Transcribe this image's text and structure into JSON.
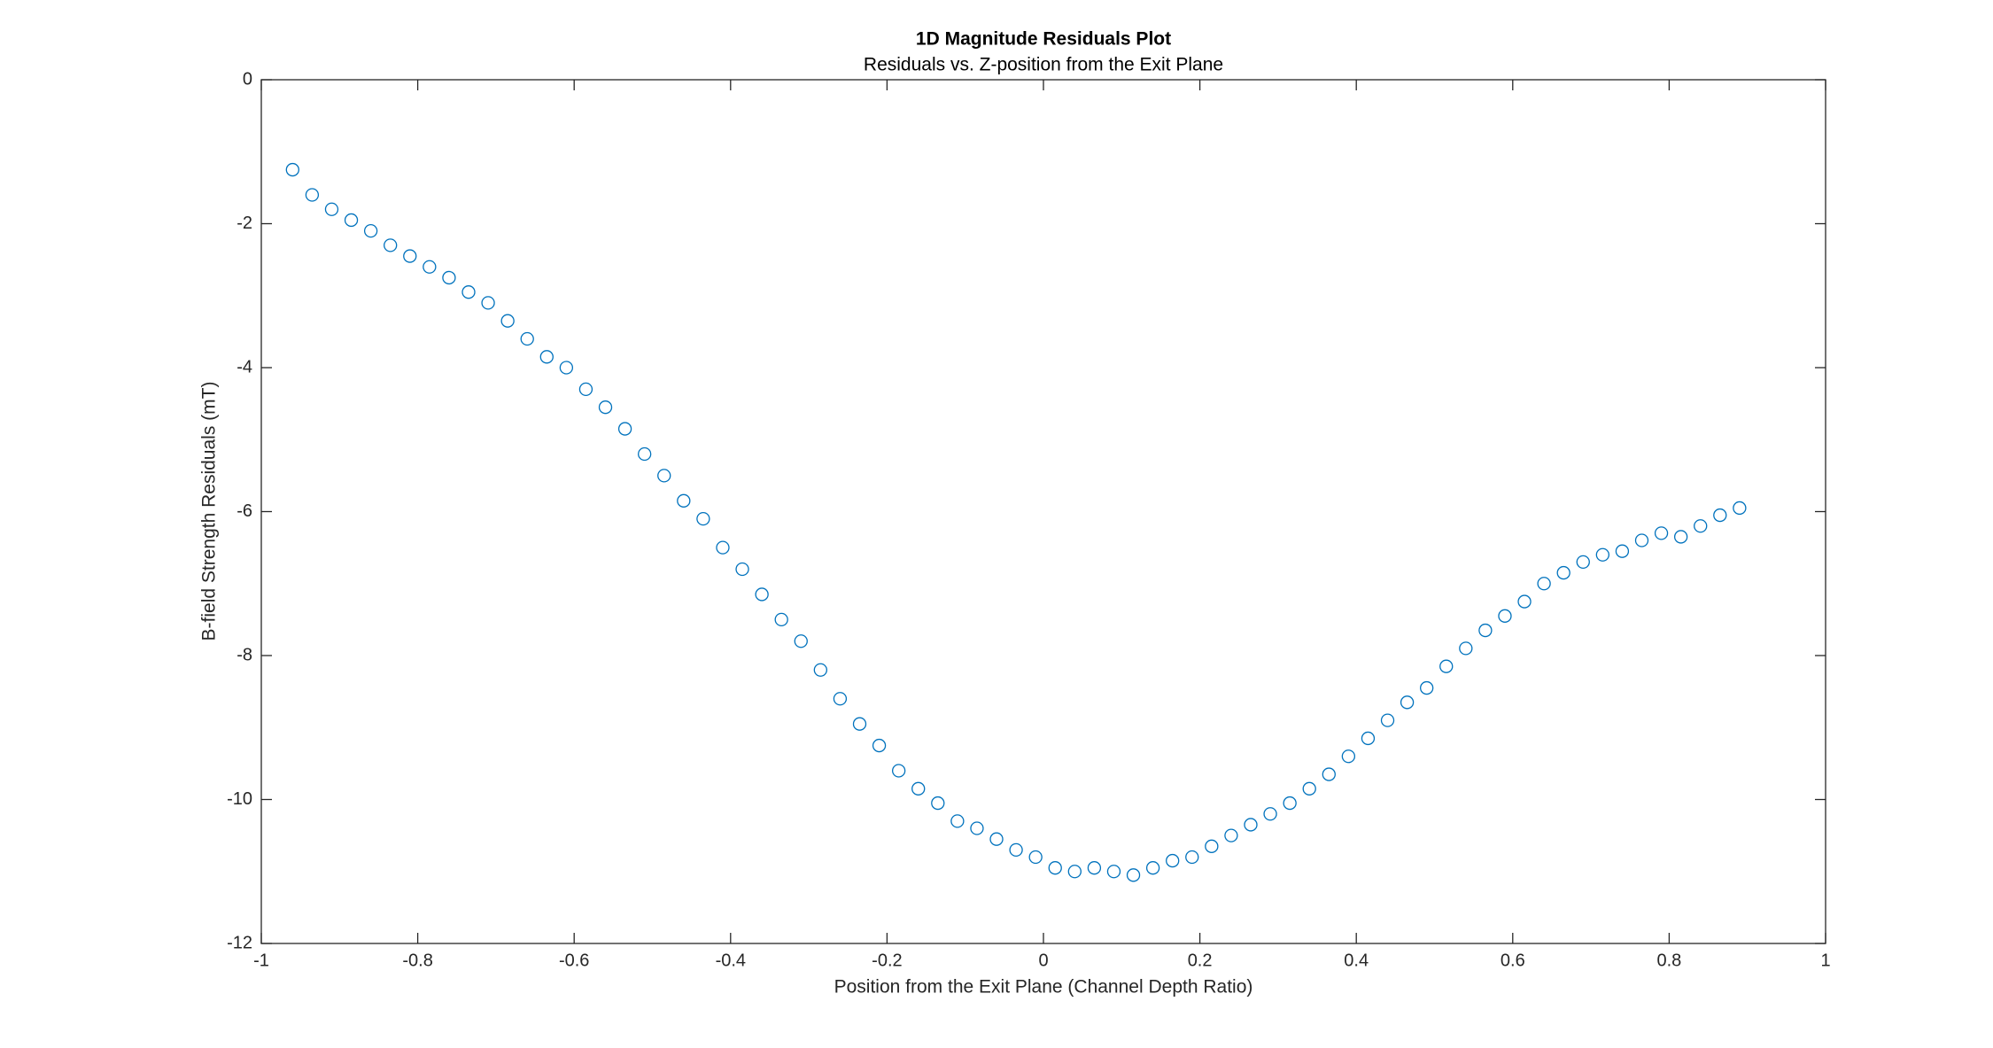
{
  "chart_data": {
    "type": "scatter",
    "title": "1D Magnitude Residuals Plot",
    "subtitle": "Residuals vs. Z-position from the Exit Plane",
    "x_label": "Position from the Exit Plane (Channel Depth Ratio)",
    "y_label": "B-field Strength Residuals (mT)",
    "color": "#0072bd",
    "xlim": [
      -1,
      1
    ],
    "ylim": [
      -12,
      0
    ],
    "xticks": [
      -1,
      -0.8,
      -0.6,
      -0.4,
      -0.2,
      0,
      0.2,
      0.4,
      0.6,
      0.8,
      1
    ],
    "yticks": [
      -12,
      -10,
      -8,
      -6,
      -4,
      -2,
      0
    ],
    "grid": false,
    "x": [
      -0.96,
      -0.935,
      -0.91,
      -0.885,
      -0.86,
      -0.835,
      -0.81,
      -0.785,
      -0.76,
      -0.735,
      -0.71,
      -0.685,
      -0.66,
      -0.635,
      -0.61,
      -0.585,
      -0.56,
      -0.535,
      -0.51,
      -0.485,
      -0.46,
      -0.435,
      -0.41,
      -0.385,
      -0.36,
      -0.335,
      -0.31,
      -0.285,
      -0.26,
      -0.235,
      -0.21,
      -0.185,
      -0.16,
      -0.135,
      -0.11,
      -0.085,
      -0.06,
      -0.035,
      -0.01,
      0.015,
      0.04,
      0.065,
      0.09,
      0.115,
      0.14,
      0.165,
      0.19,
      0.215,
      0.24,
      0.265,
      0.29,
      0.315,
      0.34,
      0.365,
      0.39,
      0.415,
      0.44,
      0.465,
      0.49,
      0.515,
      0.54,
      0.565,
      0.59,
      0.615,
      0.64,
      0.665,
      0.69,
      0.715,
      0.74,
      0.765,
      0.79,
      0.815,
      0.84,
      0.865,
      0.89
    ],
    "values": [
      -1.25,
      -1.6,
      -1.8,
      -1.95,
      -2.1,
      -2.3,
      -2.45,
      -2.6,
      -2.75,
      -2.95,
      -3.1,
      -3.35,
      -3.6,
      -3.85,
      -4.0,
      -4.3,
      -4.55,
      -4.85,
      -5.2,
      -5.5,
      -5.85,
      -6.1,
      -6.5,
      -6.8,
      -7.15,
      -7.5,
      -7.8,
      -8.2,
      -8.6,
      -8.95,
      -9.25,
      -9.6,
      -9.85,
      -10.05,
      -10.3,
      -10.4,
      -10.55,
      -10.7,
      -10.8,
      -10.95,
      -11.0,
      -10.95,
      -11.0,
      -11.05,
      -10.95,
      -10.85,
      -10.8,
      -10.65,
      -10.5,
      -10.35,
      -10.2,
      -10.05,
      -9.85,
      -9.65,
      -9.4,
      -9.15,
      -8.9,
      -8.65,
      -8.45,
      -8.15,
      -7.9,
      -7.65,
      -7.45,
      -7.25,
      -7.0,
      -6.85,
      -6.7,
      -6.6,
      -6.55,
      -6.4,
      -6.3,
      -6.35,
      -6.2,
      -6.05,
      -5.95
    ]
  }
}
